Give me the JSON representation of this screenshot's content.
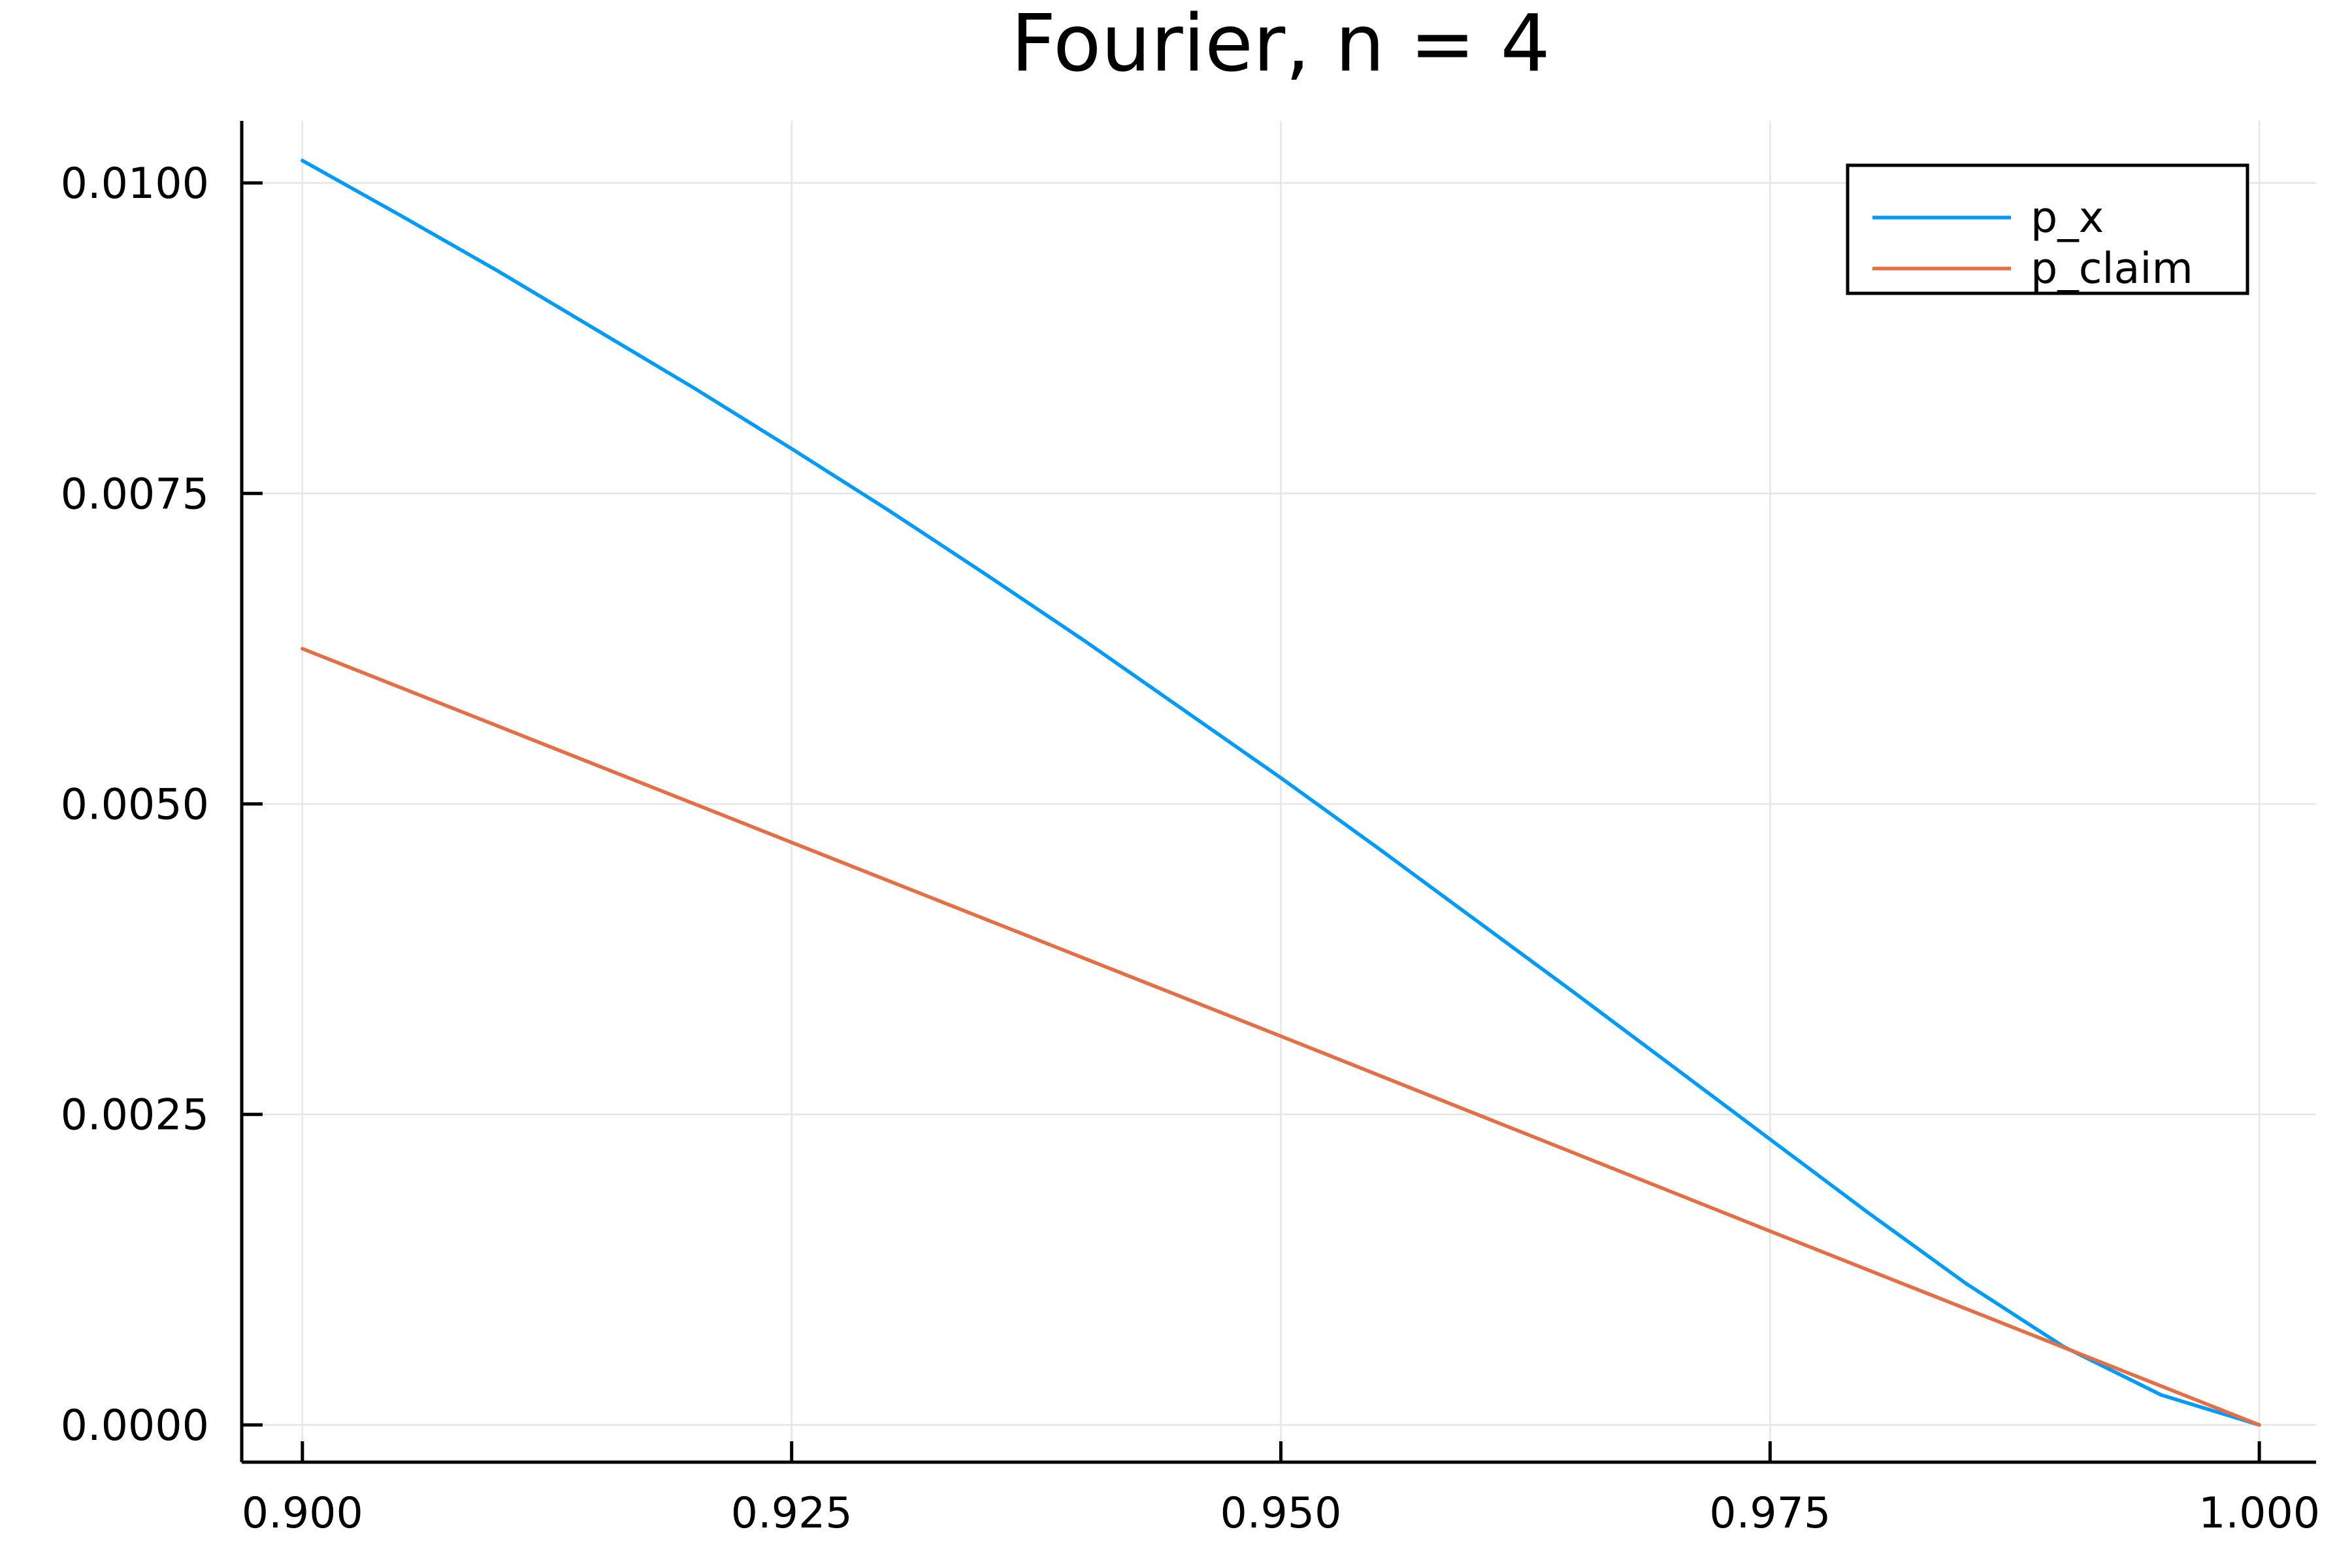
{
  "chart_data": {
    "type": "line",
    "title": "Fourier, n = 4",
    "xlabel": "",
    "ylabel": "",
    "xlim": [
      0.8969,
      1.0029
    ],
    "ylim": [
      -0.0003,
      0.0105
    ],
    "x_ticks": [
      0.9,
      0.925,
      0.95,
      0.975,
      1.0
    ],
    "x_tick_labels": [
      "0.900",
      "0.925",
      "0.950",
      "0.975",
      "1.000"
    ],
    "y_ticks": [
      0.0,
      0.0025,
      0.005,
      0.0075,
      0.01
    ],
    "y_tick_labels": [
      "0.0000",
      "0.0025",
      "0.0050",
      "0.0075",
      "0.0100"
    ],
    "grid": true,
    "legend_position": "top-right",
    "series": [
      {
        "name": "p_x",
        "color": "#009af9",
        "x": [
          0.9,
          0.905,
          0.91,
          0.915,
          0.92,
          0.925,
          0.93,
          0.935,
          0.94,
          0.945,
          0.95,
          0.955,
          0.96,
          0.965,
          0.97,
          0.975,
          0.98,
          0.985,
          0.99,
          0.995,
          1.0
        ],
        "y": [
          0.01018,
          0.00974,
          0.00929,
          0.00882,
          0.00835,
          0.00786,
          0.00736,
          0.00684,
          0.00631,
          0.00576,
          0.00521,
          0.00464,
          0.00406,
          0.00348,
          0.00289,
          0.0023,
          0.00171,
          0.00114,
          0.00063,
          0.00024,
          0.0
        ]
      },
      {
        "name": "p_claim",
        "color": "#e26f46",
        "x": [
          0.9,
          0.925,
          0.95,
          0.975,
          1.0
        ],
        "y": [
          0.00625,
          0.00469,
          0.00313,
          0.00156,
          0.0
        ]
      }
    ]
  }
}
